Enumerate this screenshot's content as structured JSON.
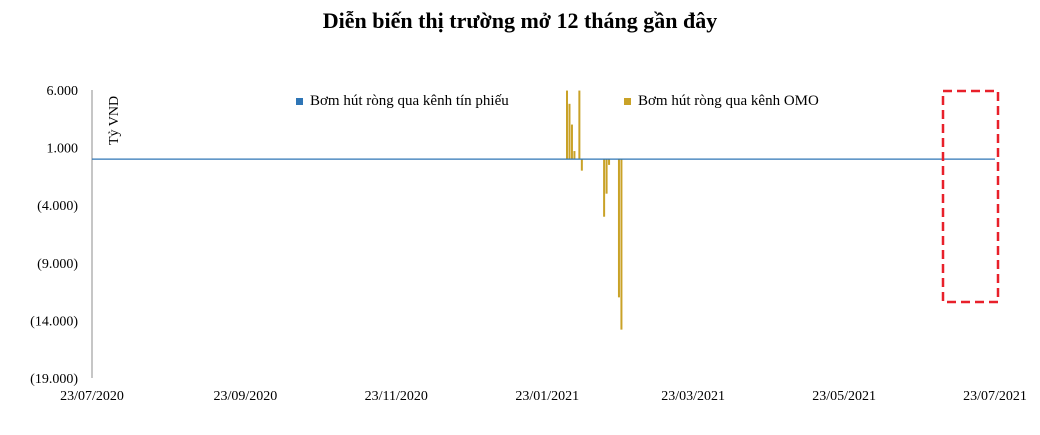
{
  "chart_data": {
    "type": "bar",
    "title": "Diễn biến thị trường mở 12 tháng gần đây",
    "ylabel": "Tỷ VND",
    "xlabel": "",
    "ylim": [
      -19000,
      6000
    ],
    "y_ticks": [
      6000,
      1000,
      -4000,
      -9000,
      -14000,
      -19000
    ],
    "y_tick_labels": [
      "6.000",
      "1.000",
      "(4.000)",
      "(9.000)",
      "(14.000)",
      "(19.000)"
    ],
    "x_range": [
      "2020-07-23",
      "2021-07-23"
    ],
    "x_ticks": [
      "2020-07-23",
      "2020-09-23",
      "2020-11-23",
      "2021-01-23",
      "2021-03-23",
      "2021-05-23",
      "2021-07-23"
    ],
    "x_tick_labels": [
      "23/07/2020",
      "23/09/2020",
      "23/11/2020",
      "23/01/2021",
      "23/03/2021",
      "23/05/2021",
      "23/07/2021"
    ],
    "grid": false,
    "legend": "top",
    "series": [
      {
        "name": "Bơm hút ròng qua kênh tín phiếu",
        "color": "#2E75B6",
        "kind": "line",
        "points": [
          {
            "x": "2020-07-23",
            "y": 0
          },
          {
            "x": "2021-07-23",
            "y": 0
          }
        ]
      },
      {
        "name": "Bơm hút ròng qua kênh OMO",
        "color": "#C9A227",
        "kind": "bar",
        "points": [
          {
            "x": "2021-01-31",
            "y": 5950
          },
          {
            "x": "2021-02-01",
            "y": 4800
          },
          {
            "x": "2021-02-02",
            "y": 3000
          },
          {
            "x": "2021-02-03",
            "y": 700
          },
          {
            "x": "2021-02-05",
            "y": 5950
          },
          {
            "x": "2021-02-06",
            "y": -1000
          },
          {
            "x": "2021-02-15",
            "y": -5000
          },
          {
            "x": "2021-02-16",
            "y": -3000
          },
          {
            "x": "2021-02-17",
            "y": -500
          },
          {
            "x": "2021-02-21",
            "y": -12000
          },
          {
            "x": "2021-02-22",
            "y": -14800
          }
        ]
      }
    ]
  }
}
